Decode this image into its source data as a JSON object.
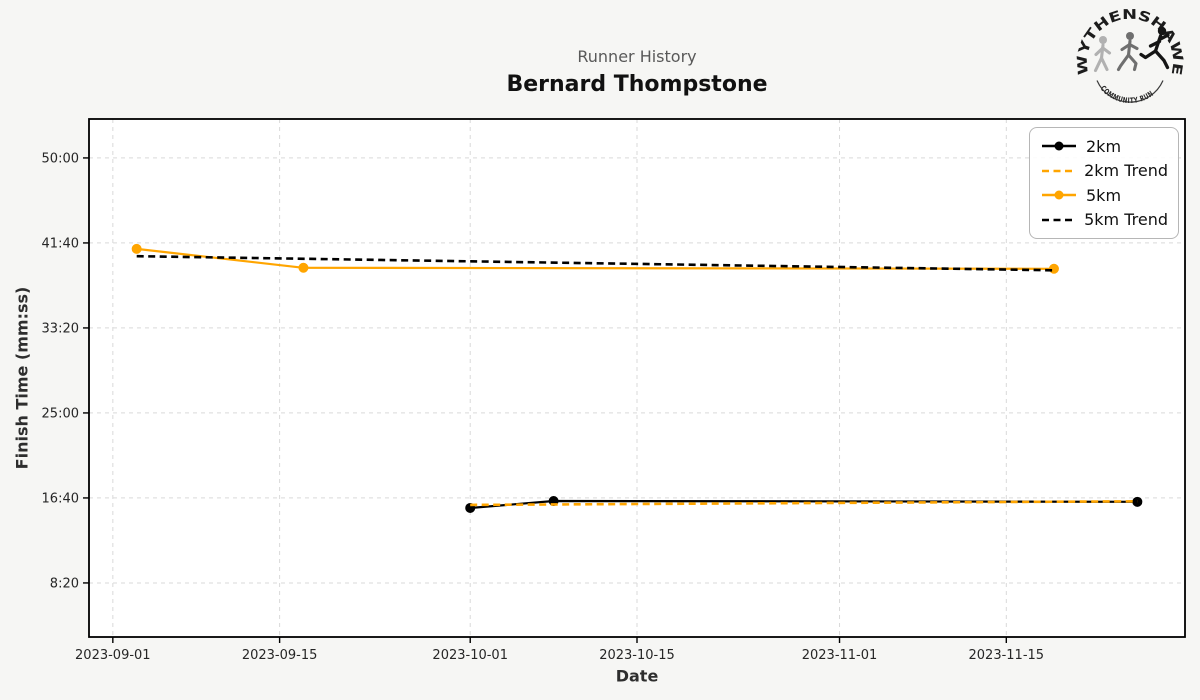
{
  "chart_data": {
    "type": "line",
    "title": "Runner History",
    "subtitle": "Bernard Thompstone",
    "xlabel": "Date",
    "ylabel": "Finish Time (mm:ss)",
    "grid": true,
    "legend_position": "upper right",
    "x_domain": [
      "2023-08-30",
      "2023-11-30"
    ],
    "y_domain_seconds": [
      182,
      3229
    ],
    "x_ticks": [
      "2023-09-01",
      "2023-09-15",
      "2023-10-01",
      "2023-10-15",
      "2023-11-01",
      "2023-11-15"
    ],
    "y_ticks": [
      {
        "label": "50:00",
        "seconds": 3000
      },
      {
        "label": "41:40",
        "seconds": 2500
      },
      {
        "label": "33:20",
        "seconds": 2000
      },
      {
        "label": "25:00",
        "seconds": 1500
      },
      {
        "label": "16:40",
        "seconds": 1000
      },
      {
        "label": "8:20",
        "seconds": 500
      }
    ],
    "series": [
      {
        "name": "2km",
        "color": "#000000",
        "style": "solid",
        "marker": true,
        "points": [
          {
            "date": "2023-10-01",
            "time": "15:41"
          },
          {
            "date": "2023-10-08",
            "time": "16:22"
          },
          {
            "date": "2023-11-26",
            "time": "16:17"
          }
        ]
      },
      {
        "name": "2km Trend",
        "color": "#FFA500",
        "style": "dashed",
        "marker": false,
        "points": [
          {
            "date": "2023-10-01",
            "time": "15:59"
          },
          {
            "date": "2023-11-26",
            "time": "16:20"
          }
        ]
      },
      {
        "name": "5km",
        "color": "#FFA500",
        "style": "solid",
        "marker": true,
        "points": [
          {
            "date": "2023-09-03",
            "time": "41:05"
          },
          {
            "date": "2023-09-17",
            "time": "39:14"
          },
          {
            "date": "2023-11-19",
            "time": "39:08"
          }
        ]
      },
      {
        "name": "5km Trend",
        "color": "#000000",
        "style": "dashed",
        "marker": false,
        "points": [
          {
            "date": "2023-09-03",
            "time": "40:22"
          },
          {
            "date": "2023-11-19",
            "time": "38:59"
          }
        ]
      }
    ]
  },
  "legend": {
    "items": [
      {
        "label": "2km"
      },
      {
        "label": "2km Trend"
      },
      {
        "label": "5km"
      },
      {
        "label": "5km Trend"
      }
    ]
  },
  "logo": {
    "top_text": "WYTHENSHAWE",
    "bottom_text": "COMMUNITY RUN"
  },
  "colors": {
    "orange": "#FFA500",
    "black": "#000000",
    "grid": "#d9d9d9",
    "background": "#f6f6f4",
    "plot_background": "#ffffff",
    "spine": "#000000",
    "title_gray": "#595959",
    "text_dark": "#262626"
  }
}
